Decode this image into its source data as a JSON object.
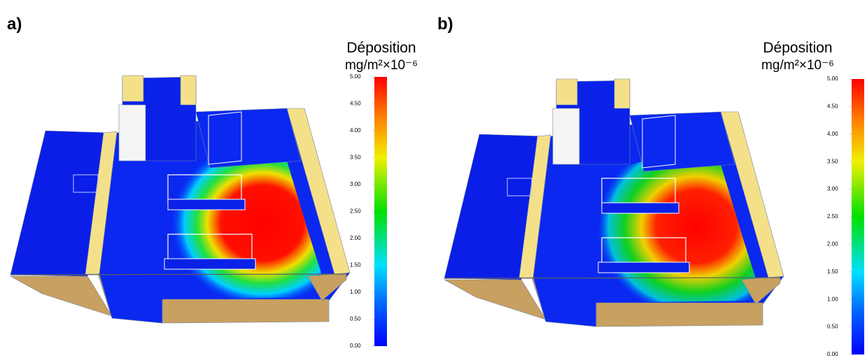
{
  "panels": [
    {
      "label": "a)",
      "colorbar": {
        "title": "Déposition",
        "unit": "mg/m²×10⁻⁶",
        "ticks": [
          {
            "value": 0,
            "label": "0.00"
          },
          {
            "value": 0.5,
            "label": "0.50"
          },
          {
            "value": 1,
            "label": "1.00"
          },
          {
            "value": 1.5,
            "label": "1.50"
          },
          {
            "value": 2,
            "label": "2.00"
          },
          {
            "value": 2.5,
            "label": "2.50"
          },
          {
            "value": 3,
            "label": "3.00"
          },
          {
            "value": 3.5,
            "label": "3.50"
          },
          {
            "value": 4,
            "label": "4.00"
          },
          {
            "value": 4.5,
            "label": "4.50"
          },
          {
            "value": 5,
            "label": "5.00"
          }
        ]
      }
    },
    {
      "label": "b)",
      "colorbar": {
        "title": "Déposition",
        "unit": "mg/m²×10⁻⁶",
        "ticks": [
          {
            "value": 0,
            "label": "0.00"
          },
          {
            "value": 0.5,
            "label": "0.50"
          },
          {
            "value": 1,
            "label": "1.00"
          },
          {
            "value": 1.5,
            "label": "1.50"
          },
          {
            "value": 2,
            "label": "2.00"
          },
          {
            "value": 2.5,
            "label": "2.50"
          },
          {
            "value": 3,
            "label": "3.00"
          },
          {
            "value": 3.5,
            "label": "3.50"
          },
          {
            "value": 4,
            "label": "4.00"
          },
          {
            "value": 4.5,
            "label": "4.50"
          },
          {
            "value": 5,
            "label": "5.00"
          }
        ]
      }
    }
  ]
}
